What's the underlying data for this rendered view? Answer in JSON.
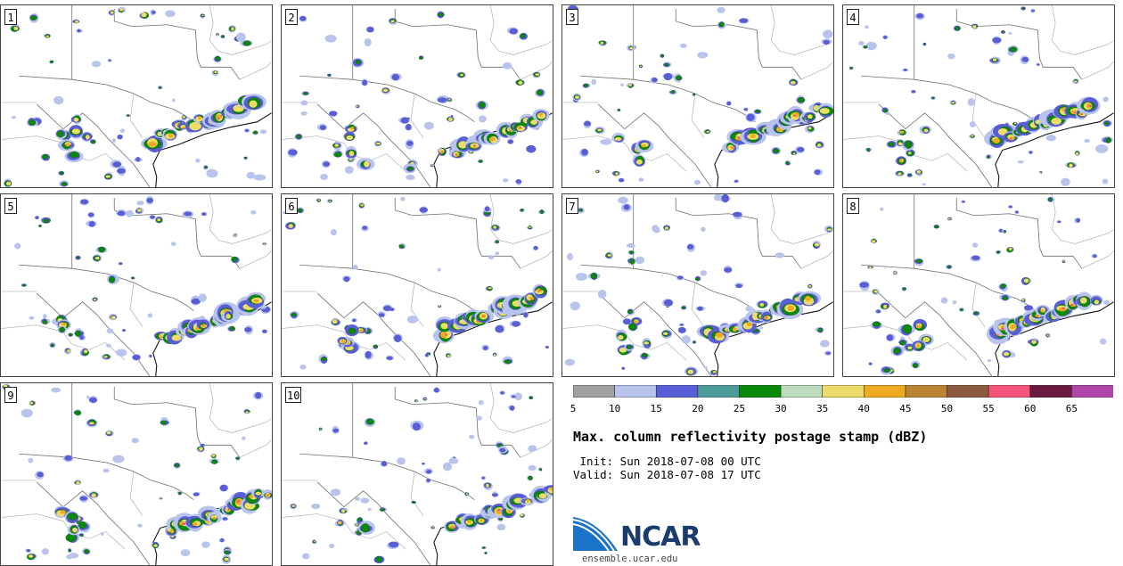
{
  "panels": [
    {
      "number": "1"
    },
    {
      "number": "2"
    },
    {
      "number": "3"
    },
    {
      "number": "4"
    },
    {
      "number": "5"
    },
    {
      "number": "6"
    },
    {
      "number": "7"
    },
    {
      "number": "8"
    },
    {
      "number": "9"
    },
    {
      "number": "10"
    }
  ],
  "colorbar": {
    "colors": [
      "#a0a0a0",
      "#b8c4ec",
      "#5a5ed6",
      "#4c9a9a",
      "#088a08",
      "#bddcbd",
      "#eedc6a",
      "#eeaa20",
      "#bb8433",
      "#8c5a40",
      "#f4557a",
      "#6a1a40",
      "#b045aa"
    ],
    "ticks": [
      "5",
      "10",
      "15",
      "20",
      "25",
      "30",
      "35",
      "40",
      "45",
      "50",
      "55",
      "60",
      "65"
    ]
  },
  "title": "Max. column reflectivity postage stamp (dBZ)",
  "init_text": " Init: Sun 2018-07-08 00 UTC",
  "valid_text": "Valid: Sun 2018-07-08 17 UTC",
  "logo": {
    "text": "NCAR",
    "url": "ensemble.ucar.edu"
  }
}
